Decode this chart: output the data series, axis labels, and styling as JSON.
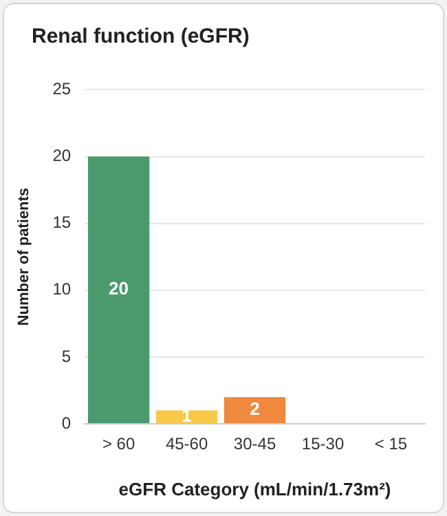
{
  "chart_data": {
    "type": "bar",
    "title": "Renal function (eGFR)",
    "xlabel": "eGFR Category (mL/min/1.73m²)",
    "ylabel": "Number of patients",
    "categories": [
      "> 60",
      "45-60",
      "30-45",
      "15-30",
      "< 15"
    ],
    "values": [
      20,
      1,
      2,
      0,
      0
    ],
    "colors": [
      "#4a9a6e",
      "#f7c948",
      "#f0883e",
      "#e0e0e0",
      "#e0e0e0"
    ],
    "value_labels": [
      "20",
      "1",
      "2",
      null,
      null
    ],
    "ylim": [
      0,
      25
    ],
    "yticks": [
      0,
      5,
      10,
      15,
      20,
      25
    ],
    "grid": "y",
    "legend": false
  }
}
